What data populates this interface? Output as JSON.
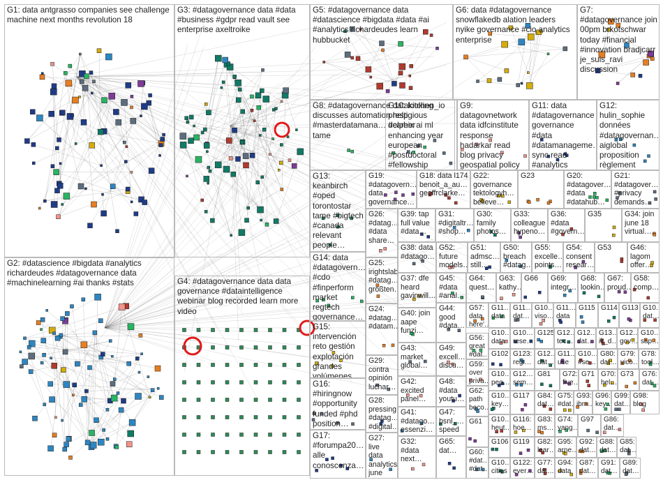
{
  "colors": {
    "edge": "#555555",
    "border": "#b9b9b9",
    "text": "#222222",
    "node_palette": [
      "#1f3c88",
      "#2e86c1",
      "#117a65",
      "#7d3c98",
      "#b03a2e",
      "#d4ac0d",
      "#e67e22",
      "#28b463",
      "#5d6d7e",
      "#f1948a"
    ],
    "highlight_ring": "#e11919"
  },
  "groups": [
    {
      "id": "G1",
      "label": "G1: data antgrasso companies see challenge machine next months revolution 18"
    },
    {
      "id": "G2",
      "label": "G2: #datascience #bigdata #analytics richardeudes #datagovernance data #machinelearning #ai thanks #stats"
    },
    {
      "id": "G3",
      "label": "G3: #datagovernance data #data #business #gdpr read vault see enterprise axeltroike"
    },
    {
      "id": "G4",
      "label": "G4: #datagovernance data data governance #dataintelligence webinar blog recorded learn more video"
    },
    {
      "id": "G5",
      "label": "G5: #datagovernance data #datascience #bigdata #data #ai #analytics richardeudes learn hubbucket"
    },
    {
      "id": "G6",
      "label": "G6: data #datagovernance snowflakedb alation leaders nyike governance #cio analytics enterprise"
    },
    {
      "id": "G7",
      "label": "G7: #datagovernance join 00pm brkotschwar today #financial #innovation bradjcarr je_suis_ravi discussion"
    },
    {
      "id": "G8",
      "label": "G8: #datagovernance datakitchen_io discusses automation help #masterdatamana… delphix ai ml tame"
    },
    {
      "id": "G10",
      "label": "G10: looking prestigious #career enhancing year european #postdoctoral #fellowship #computerscienc…"
    },
    {
      "id": "G9",
      "label": "G9: datagovnetwork data idfcinstitute response hadarkar read blog privacy geospatial policy"
    },
    {
      "id": "G11",
      "label": "G11: data #datagovernance governance #data #datamanageme… sync read #analytics #dataquality"
    },
    {
      "id": "G12",
      "label": "G12: hulin_sophie données #datagovernan… aiglobal proposition règlement l'ue…"
    },
    {
      "id": "G13",
      "label": "G13: keanbirch #oped torontostar tame #bigtech #canada relevant people…"
    },
    {
      "id": "G19",
      "label": "G19: #datagovern… data governance…"
    },
    {
      "id": "G18",
      "label": "G18: data l174 benoit_a_au… geoffrclarke…"
    },
    {
      "id": "G22",
      "label": "G22: governance tektologyh… believe…"
    },
    {
      "id": "G23",
      "label": "G23"
    },
    {
      "id": "G20",
      "label": "G20: #datagover… #data #datahub…"
    },
    {
      "id": "G21",
      "label": "G21: #datagover… #privacy demands…"
    },
    {
      "id": "G26",
      "label": "G26: #datag… #data share…"
    },
    {
      "id": "G39",
      "label": "G39: tap full value #data…"
    },
    {
      "id": "G31",
      "label": "G31: #digitaltr… #shop…"
    },
    {
      "id": "G30",
      "label": "G30: family photos…"
    },
    {
      "id": "G33",
      "label": "G33: colleague hypeno…"
    },
    {
      "id": "G36",
      "label": "G36: #data #govern…"
    },
    {
      "id": "G35",
      "label": "G35"
    },
    {
      "id": "G34",
      "label": "G34: join june 18 virtual…"
    },
    {
      "id": "G14",
      "label": "G14: data #datagovern… #cdo #finperform market regtech governance…"
    },
    {
      "id": "G38",
      "label": "G38: data #datago…"
    },
    {
      "id": "G52",
      "label": "G52: future models…"
    },
    {
      "id": "G51",
      "label": "G51: admsc… still…"
    },
    {
      "id": "G50",
      "label": "G50: breach #datag…"
    },
    {
      "id": "G55",
      "label": "G55: excelle… points…"
    },
    {
      "id": "G54",
      "label": "G54: consent resear…"
    },
    {
      "id": "G53",
      "label": "G53"
    },
    {
      "id": "G46",
      "label": "G46: lagom offer…"
    },
    {
      "id": "G25",
      "label": "G25: irightslab #datag… größten…"
    },
    {
      "id": "G45",
      "label": "G45: #data #anal…"
    },
    {
      "id": "G64",
      "label": "G64: quest…"
    },
    {
      "id": "G63",
      "label": "G63: kathy…"
    },
    {
      "id": "G66",
      "label": "G66"
    },
    {
      "id": "G69",
      "label": "G69: integr…"
    },
    {
      "id": "G68",
      "label": "G68: lookin…"
    },
    {
      "id": "G67",
      "label": "G67: proud…"
    },
    {
      "id": "G58",
      "label": "G58: comp…"
    },
    {
      "id": "G37",
      "label": "G37: dfe heard gavinwill…"
    },
    {
      "id": "G57",
      "label": "G57: data here'…"
    },
    {
      "id": "G11x",
      "label": "G11… data"
    },
    {
      "id": "G11y",
      "label": "G11… dat…"
    },
    {
      "id": "G10x",
      "label": "G10… viso…"
    },
    {
      "id": "G11z",
      "label": "G11… data"
    },
    {
      "id": "G115",
      "label": "G115"
    },
    {
      "id": "G114",
      "label": "G114"
    },
    {
      "id": "G113",
      "label": "G113"
    },
    {
      "id": "G10y",
      "label": "G10… dat…"
    },
    {
      "id": "G15",
      "label": "G15: intervención reto gestión explotación grandes volúmenes…"
    },
    {
      "id": "G24",
      "label": "G24: #datag… #datam…"
    },
    {
      "id": "G40",
      "label": "G40: join aape funzi…"
    },
    {
      "id": "G44",
      "label": "G44: good #data…"
    },
    {
      "id": "G10z",
      "label": "G10… data"
    },
    {
      "id": "G10w",
      "label": "G10… rese…"
    },
    {
      "id": "G125",
      "label": "G125"
    },
    {
      "id": "G12x",
      "label": "G12… tec…"
    },
    {
      "id": "G12y",
      "label": "G12… dat…"
    },
    {
      "id": "G13x",
      "label": "G13… iit_d…"
    },
    {
      "id": "G12z",
      "label": "G12… gov…"
    },
    {
      "id": "G10v",
      "label": "G10… sap…"
    },
    {
      "id": "G56",
      "label": "G56: great #dat…"
    },
    {
      "id": "G43",
      "label": "G43: market global…"
    },
    {
      "id": "G49",
      "label": "G49: excell… discu…"
    },
    {
      "id": "G102",
      "label": "G102"
    },
    {
      "id": "G123",
      "label": "G123: regi…"
    },
    {
      "id": "G12w",
      "label": "G12… dat…"
    },
    {
      "id": "G11w",
      "label": "G11… use"
    },
    {
      "id": "G10u",
      "label": "G10… #se…"
    },
    {
      "id": "G80",
      "label": "G80: dat…"
    },
    {
      "id": "G79",
      "label": "G79: vico…"
    },
    {
      "id": "G78",
      "label": "G78: tool…"
    },
    {
      "id": "G29",
      "label": "G29: contra opinión luchar…"
    },
    {
      "id": "G59",
      "label": "G59: over priva…"
    },
    {
      "id": "G10t",
      "label": "G10… peo…"
    },
    {
      "id": "G12v",
      "label": "G12… sem…"
    },
    {
      "id": "G81",
      "label": "G81"
    },
    {
      "id": "G72",
      "label": "G72: five…"
    },
    {
      "id": "G71",
      "label": "G71"
    },
    {
      "id": "G70",
      "label": "G70: hel…"
    },
    {
      "id": "G73",
      "label": "G73"
    },
    {
      "id": "G76",
      "label": "G76: dat…"
    },
    {
      "id": "G16",
      "label": "G16: #hiringnow #opportunity funded #phd position…"
    },
    {
      "id": "G42",
      "label": "G42: excited panel…"
    },
    {
      "id": "G48",
      "label": "G48: #data youtu…"
    },
    {
      "id": "G62",
      "label": "G62: path beco…"
    },
    {
      "id": "G10s",
      "label": "G10… key…"
    },
    {
      "id": "G117",
      "label": "G117"
    },
    {
      "id": "G84",
      "label": "G84: dat…"
    },
    {
      "id": "G75",
      "label": "G75: #dat…"
    },
    {
      "id": "G93",
      "label": "G93: ibm…"
    },
    {
      "id": "G96",
      "label": "G96: key…"
    },
    {
      "id": "G99",
      "label": "G99: dat…"
    },
    {
      "id": "G98",
      "label": "G98: blog"
    },
    {
      "id": "G28",
      "label": "G28: pressing #datag… #digital…"
    },
    {
      "id": "G41",
      "label": "G41: #datago… essenzi…"
    },
    {
      "id": "G47",
      "label": "G47: bsnl_… speed"
    },
    {
      "id": "G61",
      "label": "G61"
    },
    {
      "id": "G10r",
      "label": "G10… heut…"
    },
    {
      "id": "G116",
      "label": "G116: hoe…"
    },
    {
      "id": "G83",
      "label": "G83: ms…"
    },
    {
      "id": "G74",
      "label": "G74: yang…"
    },
    {
      "id": "G97",
      "label": "G97"
    },
    {
      "id": "G86",
      "label": "G86: dat…"
    },
    {
      "id": "G17",
      "label": "G17: #forumpa20… alle conoscenza…"
    },
    {
      "id": "G27",
      "label": "G27: live data analytics june 22…"
    },
    {
      "id": "G106",
      "label": "G106"
    },
    {
      "id": "G119",
      "label": "G119"
    },
    {
      "id": "G82",
      "label": "G82: lear…"
    },
    {
      "id": "G95",
      "label": "G95: arne…"
    },
    {
      "id": "G92",
      "label": "G92: dat…"
    },
    {
      "id": "G88",
      "label": "G88: dat…"
    },
    {
      "id": "G85",
      "label": "G85: dat…"
    },
    {
      "id": "G32",
      "label": "G32: #data next…"
    },
    {
      "id": "G65",
      "label": "G65: dat…"
    },
    {
      "id": "G60",
      "label": "G60: #dat… #dat…"
    },
    {
      "id": "G10q",
      "label": "G10… cities"
    },
    {
      "id": "G122",
      "label": "G122: ever…"
    },
    {
      "id": "G77",
      "label": "G77: dat…"
    },
    {
      "id": "G94",
      "label": "G94: data"
    },
    {
      "id": "G87",
      "label": "G87: dat…"
    },
    {
      "id": "G91",
      "label": "G91: dat…"
    },
    {
      "id": "G89",
      "label": "G89: dat…"
    }
  ]
}
